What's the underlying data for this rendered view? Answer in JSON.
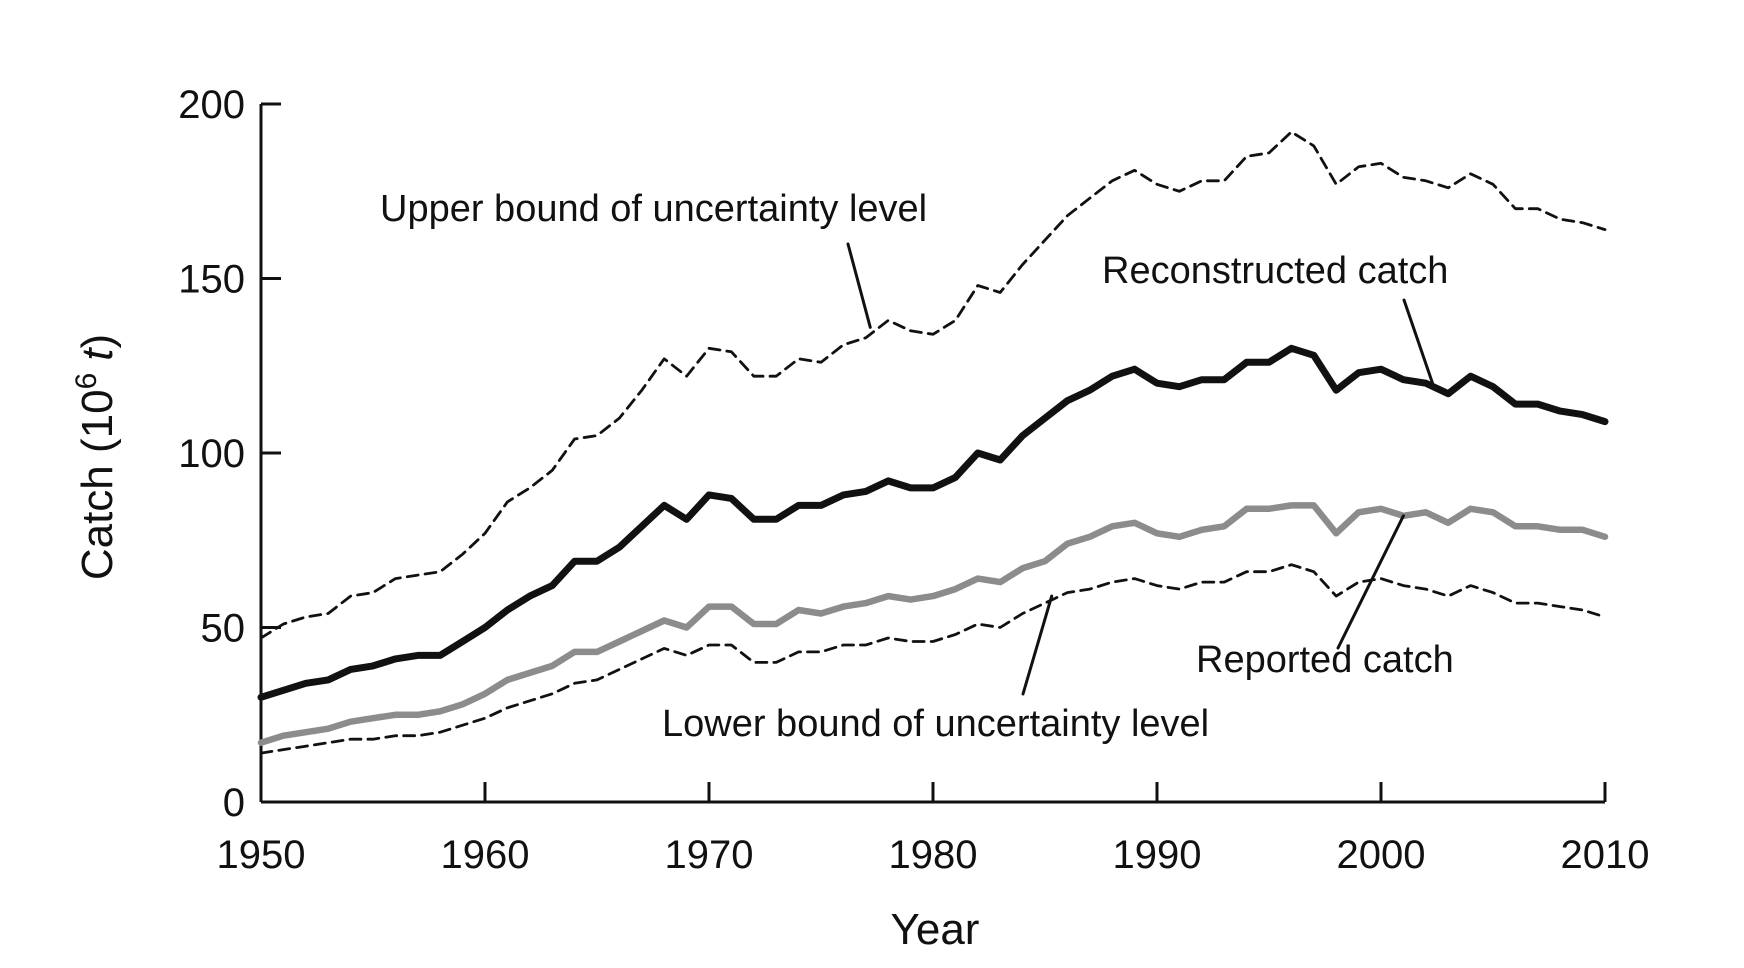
{
  "chart_data": {
    "type": "line",
    "xlabel": "Year",
    "ylabel": {
      "prefix": "Catch (10",
      "superscript": "6",
      "unit": "t",
      "suffix": ")"
    },
    "xlim": [
      1950,
      2010
    ],
    "ylim": [
      0,
      200
    ],
    "x_ticks": [
      "1950",
      "1960",
      "1970",
      "1980",
      "1990",
      "2000",
      "2010"
    ],
    "y_ticks": [
      "0",
      "50",
      "100",
      "150",
      "200"
    ],
    "grid": false,
    "legend": "none",
    "x": [
      1950,
      1951,
      1952,
      1953,
      1954,
      1955,
      1956,
      1957,
      1958,
      1959,
      1960,
      1961,
      1962,
      1963,
      1964,
      1965,
      1966,
      1967,
      1968,
      1969,
      1970,
      1971,
      1972,
      1973,
      1974,
      1975,
      1976,
      1977,
      1978,
      1979,
      1980,
      1981,
      1982,
      1983,
      1984,
      1985,
      1986,
      1987,
      1988,
      1989,
      1990,
      1991,
      1992,
      1993,
      1994,
      1995,
      1996,
      1997,
      1998,
      1999,
      2000,
      2001,
      2002,
      2003,
      2004,
      2005,
      2006,
      2007,
      2008,
      2009,
      2010
    ],
    "series": [
      {
        "name": "Upper bound of uncertainty level",
        "style": "dashed",
        "color": "#111111",
        "values": [
          47,
          51,
          53,
          54,
          59,
          60,
          64,
          65,
          66,
          71,
          77,
          86,
          90,
          95,
          104,
          105,
          110,
          118,
          127,
          122,
          130,
          129,
          122,
          122,
          127,
          126,
          131,
          133,
          138,
          135,
          134,
          138,
          148,
          146,
          154,
          161,
          168,
          173,
          178,
          181,
          177,
          175,
          178,
          178,
          185,
          186,
          192,
          188,
          177,
          182,
          183,
          179,
          178,
          176,
          180,
          177,
          170,
          170,
          167,
          166,
          164
        ]
      },
      {
        "name": "Reconstructed catch",
        "style": "solid-thick",
        "color": "#111111",
        "values": [
          30,
          32,
          34,
          35,
          38,
          39,
          41,
          42,
          42,
          46,
          50,
          55,
          59,
          62,
          69,
          69,
          73,
          79,
          85,
          81,
          88,
          87,
          81,
          81,
          85,
          85,
          88,
          89,
          92,
          90,
          90,
          93,
          100,
          98,
          105,
          110,
          115,
          118,
          122,
          124,
          120,
          119,
          121,
          121,
          126,
          126,
          130,
          128,
          118,
          123,
          124,
          121,
          120,
          117,
          122,
          119,
          114,
          114,
          112,
          111,
          109
        ]
      },
      {
        "name": "Reported catch",
        "style": "solid",
        "color": "#8c8c8c",
        "values": [
          17,
          19,
          20,
          21,
          23,
          24,
          25,
          25,
          26,
          28,
          31,
          35,
          37,
          39,
          43,
          43,
          46,
          49,
          52,
          50,
          56,
          56,
          51,
          51,
          55,
          54,
          56,
          57,
          59,
          58,
          59,
          61,
          64,
          63,
          67,
          69,
          74,
          76,
          79,
          80,
          77,
          76,
          78,
          79,
          84,
          84,
          85,
          85,
          77,
          83,
          84,
          82,
          83,
          80,
          84,
          83,
          79,
          79,
          78,
          78,
          76
        ]
      },
      {
        "name": "Lower bound of uncertainty level",
        "style": "dashed",
        "color": "#111111",
        "values": [
          14,
          15,
          16,
          17,
          18,
          18,
          19,
          19,
          20,
          22,
          24,
          27,
          29,
          31,
          34,
          35,
          38,
          41,
          44,
          42,
          45,
          45,
          40,
          40,
          43,
          43,
          45,
          45,
          47,
          46,
          46,
          48,
          51,
          50,
          54,
          57,
          60,
          61,
          63,
          64,
          62,
          61,
          63,
          63,
          66,
          66,
          68,
          66,
          59,
          63,
          64,
          62,
          61,
          59,
          62,
          60,
          57,
          57,
          56,
          55,
          53
        ]
      }
    ],
    "annotations": [
      {
        "text": "Upper bound of uncertainty level",
        "target_series": "Upper bound of uncertainty level",
        "target": [
          1977.2,
          136
        ]
      },
      {
        "text": "Reconstructed catch",
        "target_series": "Reconstructed catch",
        "target": [
          2002.3,
          120
        ]
      },
      {
        "text": "Reported catch",
        "target_series": "Reported catch",
        "target": [
          2001.0,
          82
        ]
      },
      {
        "text": "Lower bound of uncertainty level",
        "target_series": "Lower bound of uncertainty level",
        "target": [
          1985.3,
          59
        ]
      }
    ]
  }
}
